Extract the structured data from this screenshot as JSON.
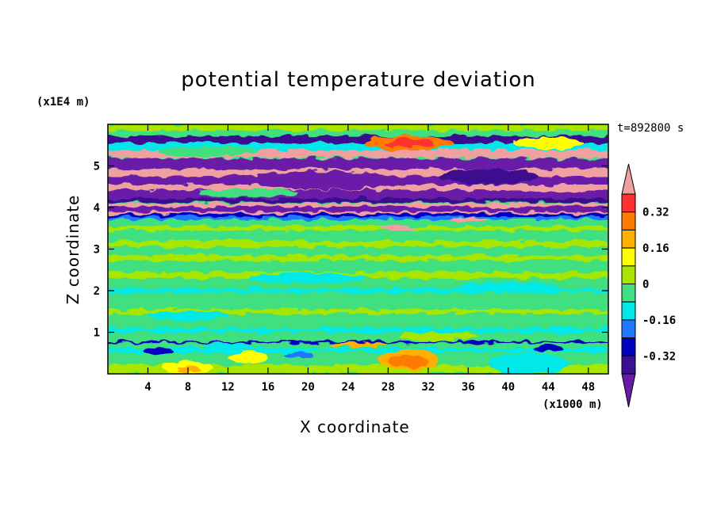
{
  "chart_data": {
    "type": "heatmap",
    "title": "potential temperature deviation",
    "xlabel": "X coordinate",
    "ylabel": "Z coordinate",
    "x_unit": "(x1000 m)",
    "y_unit": "(x1E4 m)",
    "timestamp": "t=892800 s",
    "xlim": [
      0,
      50
    ],
    "ylim": [
      0,
      6
    ],
    "x_ticks": [
      "4",
      "8",
      "12",
      "16",
      "20",
      "24",
      "28",
      "32",
      "36",
      "40",
      "44",
      "48"
    ],
    "y_ticks": [
      "1",
      "2",
      "3",
      "4",
      "5"
    ],
    "colorbar": {
      "labels": [
        "0.32",
        "0.16",
        "0",
        "-0.16",
        "-0.32"
      ],
      "levels": [
        {
          "lo": 0.4,
          "hi": null,
          "color": "#f0a0a0"
        },
        {
          "lo": 0.32,
          "hi": 0.4,
          "color": "#ff3030"
        },
        {
          "lo": 0.24,
          "hi": 0.32,
          "color": "#ff7a00"
        },
        {
          "lo": 0.16,
          "hi": 0.24,
          "color": "#ffb000"
        },
        {
          "lo": 0.08,
          "hi": 0.16,
          "color": "#ffff00"
        },
        {
          "lo": 0.0,
          "hi": 0.08,
          "color": "#a8e600"
        },
        {
          "lo": -0.08,
          "hi": 0.0,
          "color": "#40e080"
        },
        {
          "lo": -0.16,
          "hi": -0.08,
          "color": "#00e8e8"
        },
        {
          "lo": -0.24,
          "hi": -0.16,
          "color": "#1e78ff"
        },
        {
          "lo": -0.32,
          "hi": -0.24,
          "color": "#0000c0"
        },
        {
          "lo": -0.4,
          "hi": -0.32,
          "color": "#3c1090"
        },
        {
          "lo": null,
          "hi": -0.4,
          "color": "#6a1aa8"
        }
      ]
    }
  }
}
